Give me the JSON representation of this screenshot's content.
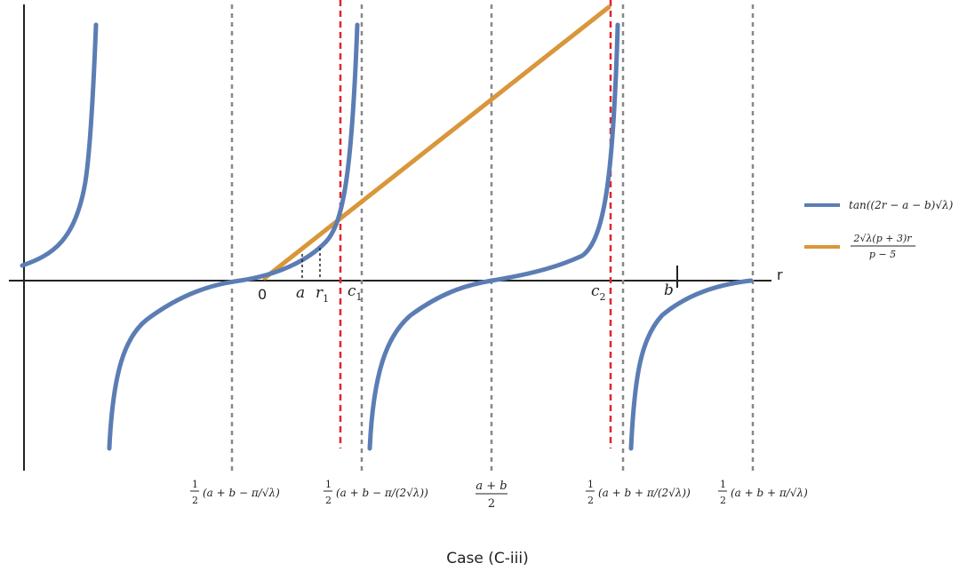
{
  "chart_data": {
    "type": "line",
    "title": "",
    "xlabel": "r",
    "ylabel": "",
    "grid": false,
    "legend_position": "right",
    "series": [
      {
        "name": "tan((2r − a − b)√λ)",
        "color": "#5b7db4",
        "description_points": {
          "x": [
            -9.8,
            -9.5,
            -9.2,
            -9.0,
            -8.8,
            -8.5,
            -8.2,
            -8.0,
            -7.6,
            -7.2,
            -6.8,
            -6.4,
            -6.0,
            -5.6,
            -5.2,
            -4.8,
            -4.4,
            -4.0,
            -3.6,
            -3.2,
            -2.8,
            -2.4,
            -2.0,
            -1.6,
            -1.2,
            -0.8,
            -0.4,
            0.0,
            0.4,
            0.8,
            1.2,
            1.6,
            2.0,
            2.3
          ],
          "y": [
            0.18,
            0.25,
            0.35,
            0.44,
            0.56,
            0.81,
            1.34,
            2.1,
            -2.1,
            -0.95,
            -0.63,
            -0.45,
            -0.33,
            -0.23,
            -0.14,
            -0.06,
            0.02,
            0.1,
            0.18,
            0.27,
            0.38,
            0.51,
            0.68,
            0.91,
            1.24,
            1.73,
            2.49,
            3.9,
            -3.9,
            -1.9,
            -1.1,
            -0.7,
            -0.46,
            -0.32
          ]
        }
      },
      {
        "name": "2√λ(p + 3)r / (p − 5)",
        "color": "#d9963a"
      }
    ],
    "x_reference_lines": [
      {
        "label": "½(a + b − π/√λ)"
      },
      {
        "label": "½(a + b − π/(2√λ))"
      },
      {
        "label": "(a + b)/2"
      },
      {
        "label": "½(a + b + π/(2√λ))"
      },
      {
        "label": "½(a + b + π/√λ)"
      }
    ],
    "red_reference_lines": [
      "c₁",
      "c₂"
    ],
    "axis_marks": [
      "0",
      "a",
      "r₁",
      "c₁",
      "c₂",
      "b"
    ]
  },
  "labels": {
    "x_axis": "r",
    "zero": "0",
    "a": "a",
    "r1_main": "r",
    "r1_sub": "1",
    "c1_main": "c",
    "c1_sub": "1",
    "c2_main": "c",
    "c2_sub": "2",
    "b": "b"
  },
  "legend": {
    "blue_label": "tan((2r − a − b)√λ)",
    "orange_num": "2√λ(p + 3)r",
    "orange_den": "p − 5"
  },
  "ticks": {
    "t1_num": "1",
    "t1_den": "2",
    "t1_body": "(a + b − π/√λ)",
    "t2_num": "1",
    "t2_den": "2",
    "t2_body": "(a + b − π/(2√λ))",
    "t3_num": "a + b",
    "t3_den": "2",
    "t4_num": "1",
    "t4_den": "2",
    "t4_body": "(a + b + π/(2√λ))",
    "t5_num": "1",
    "t5_den": "2",
    "t5_body": "(a + b + π/√λ)"
  },
  "caption": "Case (C-iii)"
}
